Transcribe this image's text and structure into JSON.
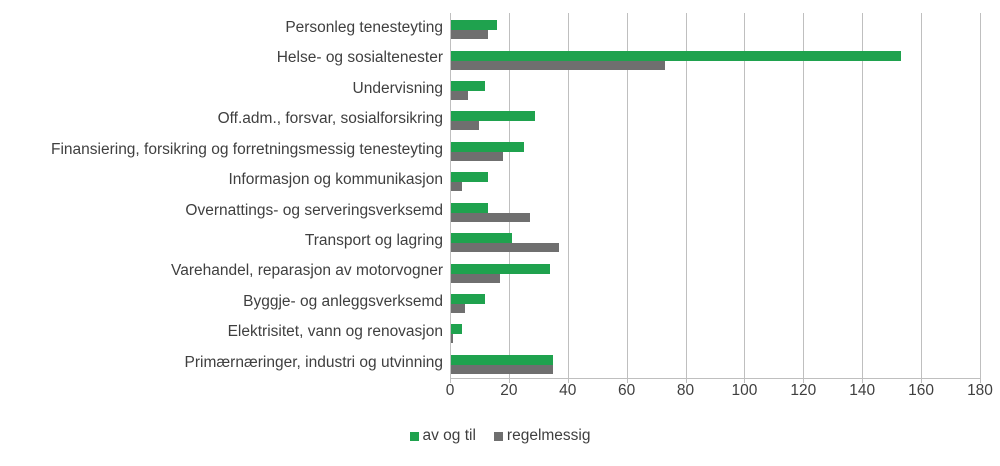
{
  "chart_data": {
    "type": "bar",
    "orientation": "horizontal",
    "title": "",
    "xlabel": "",
    "ylabel": "",
    "xlim": [
      0,
      180
    ],
    "x_ticks": [
      0,
      20,
      40,
      60,
      80,
      100,
      120,
      140,
      160,
      180
    ],
    "x_tick_labels": [
      "0",
      "20",
      "40",
      "60",
      "80",
      "100",
      "120",
      "140",
      "160",
      "180"
    ],
    "grid": true,
    "legend_position": "bottom",
    "categories": [
      "Personleg tenesteyting",
      "Helse- og sosialtenester",
      "Undervisning",
      "Off.adm., forsvar, sosialforsikring",
      "Finansiering, forsikring og forretningsmessig tenesteyting",
      "Informasjon og kommunikasjon",
      "Overnattings- og serveringsverksemd",
      "Transport og lagring",
      "Varehandel, reparasjon av motorvogner",
      "Byggje- og anleggsverksemd",
      "Elektrisitet, vann og renovasjon",
      "Primærnæringer, industri og utvinning"
    ],
    "series": [
      {
        "name": "av og til",
        "color": "#1fa24e",
        "values": [
          16,
          153,
          12,
          29,
          25,
          13,
          13,
          21,
          34,
          12,
          4,
          35
        ]
      },
      {
        "name": "regelmessig",
        "color": "#6f6f6f",
        "values": [
          13,
          73,
          6,
          10,
          18,
          4,
          27,
          37,
          17,
          5,
          1,
          35
        ]
      }
    ]
  },
  "colors": {
    "gridline": "#bfbfbf",
    "axis_text": "#3f3f3f",
    "background": "#ffffff"
  }
}
